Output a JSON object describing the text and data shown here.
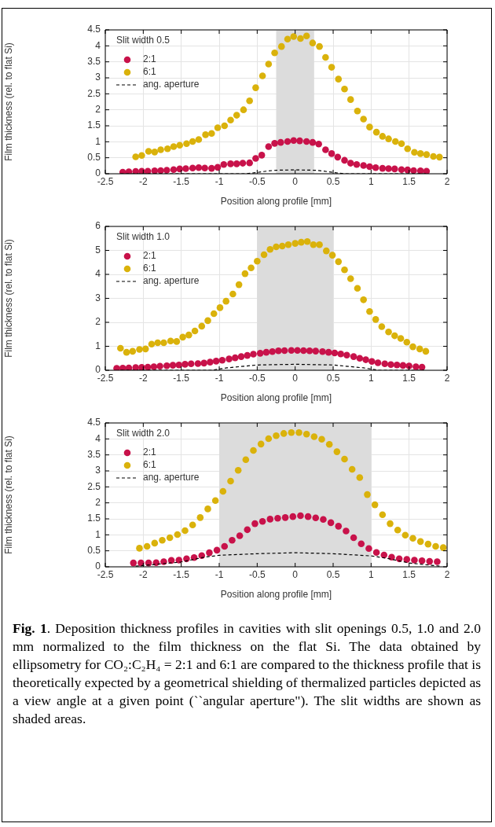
{
  "chart_data": [
    {
      "type": "scatter",
      "legend_title": "Slit width 0.5",
      "xlabel": "Position along profile [mm]",
      "ylabel": "Film thickness (rel. to flat Si)",
      "xlim": [
        -2.5,
        2
      ],
      "xticks": [
        -2.5,
        -2,
        -1.5,
        -1,
        -0.5,
        0,
        0.5,
        1,
        1.5,
        2
      ],
      "ylim": [
        0,
        4.5
      ],
      "yticks": [
        0,
        0.5,
        1,
        1.5,
        2,
        2.5,
        3,
        3.5,
        4,
        4.5
      ],
      "grid": true,
      "legend": "top left",
      "marker": "circle",
      "bands": [
        {
          "axis": "x",
          "from": -0.25,
          "to": 0.25,
          "color": "#dcdcdc"
        }
      ],
      "series": [
        {
          "name": "2:1",
          "color": "#c8124a",
          "x": [
            -2.27,
            -2.19,
            -2.1,
            -2.02,
            -1.94,
            -1.85,
            -1.77,
            -1.69,
            -1.6,
            -1.52,
            -1.44,
            -1.35,
            -1.27,
            -1.19,
            -1.1,
            -1.02,
            -0.94,
            -0.85,
            -0.77,
            -0.69,
            -0.6,
            -0.52,
            -0.44,
            -0.35,
            -0.27,
            -0.19,
            -0.1,
            -0.02,
            0.06,
            0.15,
            0.23,
            0.31,
            0.4,
            0.48,
            0.56,
            0.65,
            0.73,
            0.81,
            0.9,
            0.98,
            1.06,
            1.15,
            1.23,
            1.31,
            1.4,
            1.48,
            1.56,
            1.65,
            1.73
          ],
          "values": [
            0.05,
            0.06,
            0.07,
            0.08,
            0.08,
            0.09,
            0.1,
            0.11,
            0.13,
            0.15,
            0.16,
            0.18,
            0.19,
            0.18,
            0.17,
            0.2,
            0.29,
            0.31,
            0.31,
            0.33,
            0.34,
            0.48,
            0.58,
            0.85,
            0.95,
            0.98,
            1.01,
            1.04,
            1.03,
            1.01,
            0.98,
            0.93,
            0.75,
            0.63,
            0.52,
            0.42,
            0.33,
            0.29,
            0.26,
            0.22,
            0.19,
            0.17,
            0.16,
            0.15,
            0.13,
            0.12,
            0.1,
            0.09,
            0.08
          ]
        },
        {
          "name": "6:1",
          "color": "#dab20b",
          "x": [
            -2.1,
            -2.02,
            -1.93,
            -1.85,
            -1.77,
            -1.68,
            -1.6,
            -1.52,
            -1.43,
            -1.35,
            -1.27,
            -1.18,
            -1.1,
            -1.02,
            -0.93,
            -0.85,
            -0.77,
            -0.68,
            -0.6,
            -0.52,
            -0.43,
            -0.35,
            -0.27,
            -0.18,
            -0.1,
            -0.02,
            0.07,
            0.15,
            0.23,
            0.32,
            0.4,
            0.48,
            0.57,
            0.65,
            0.73,
            0.82,
            0.9,
            0.98,
            1.07,
            1.15,
            1.23,
            1.32,
            1.4,
            1.48,
            1.57,
            1.65,
            1.73,
            1.82,
            1.9
          ],
          "values": [
            0.53,
            0.57,
            0.7,
            0.68,
            0.75,
            0.78,
            0.85,
            0.89,
            0.94,
            1.01,
            1.07,
            1.22,
            1.26,
            1.44,
            1.5,
            1.68,
            1.83,
            2.0,
            2.28,
            2.69,
            3.06,
            3.43,
            3.78,
            3.98,
            4.21,
            4.29,
            4.23,
            4.31,
            4.09,
            3.98,
            3.64,
            3.33,
            2.96,
            2.65,
            2.32,
            1.96,
            1.71,
            1.46,
            1.3,
            1.17,
            1.09,
            1.01,
            0.94,
            0.78,
            0.67,
            0.63,
            0.6,
            0.54,
            0.52
          ]
        },
        {
          "name": "ang. aperture",
          "type": "line",
          "line_style": "dashed",
          "marker": "none",
          "color": "#000000",
          "x": [
            -2.3,
            -0.65,
            -0.5,
            -0.35,
            -0.25,
            0,
            0.25,
            0.35,
            0.5,
            0.65,
            1.75
          ],
          "values": [
            0,
            0,
            0.04,
            0.09,
            0.11,
            0.12,
            0.11,
            0.09,
            0.04,
            0,
            0
          ]
        }
      ]
    },
    {
      "type": "scatter",
      "legend_title": "Slit width 1.0",
      "xlabel": "Position along profile [mm]",
      "ylabel": "Film thickness (rel. to flat Si)",
      "xlim": [
        -2.5,
        2
      ],
      "xticks": [
        -2.5,
        -2,
        -1.5,
        -1,
        -0.5,
        0,
        0.5,
        1,
        1.5,
        2
      ],
      "ylim": [
        0,
        6
      ],
      "yticks": [
        0,
        1,
        2,
        3,
        4,
        5,
        6
      ],
      "grid": true,
      "legend": "top left",
      "marker": "circle",
      "bands": [
        {
          "axis": "x",
          "from": -0.5,
          "to": 0.5,
          "color": "#dcdcdc"
        }
      ],
      "series": [
        {
          "name": "2:1",
          "color": "#c8124a",
          "x": [
            -2.35,
            -2.27,
            -2.19,
            -2.1,
            -2.02,
            -1.94,
            -1.86,
            -1.78,
            -1.69,
            -1.61,
            -1.53,
            -1.45,
            -1.37,
            -1.28,
            -1.2,
            -1.12,
            -1.04,
            -0.96,
            -0.87,
            -0.79,
            -0.71,
            -0.63,
            -0.55,
            -0.46,
            -0.38,
            -0.3,
            -0.22,
            -0.14,
            -0.05,
            0.03,
            0.11,
            0.19,
            0.27,
            0.36,
            0.44,
            0.52,
            0.6,
            0.68,
            0.77,
            0.85,
            0.93,
            1.01,
            1.09,
            1.18,
            1.26,
            1.34,
            1.42,
            1.5,
            1.59,
            1.67
          ],
          "values": [
            0.08,
            0.09,
            0.1,
            0.11,
            0.12,
            0.13,
            0.15,
            0.17,
            0.19,
            0.21,
            0.22,
            0.25,
            0.27,
            0.28,
            0.3,
            0.34,
            0.38,
            0.42,
            0.47,
            0.52,
            0.57,
            0.62,
            0.67,
            0.71,
            0.75,
            0.78,
            0.81,
            0.82,
            0.83,
            0.83,
            0.82,
            0.81,
            0.8,
            0.78,
            0.75,
            0.72,
            0.68,
            0.63,
            0.57,
            0.5,
            0.44,
            0.37,
            0.31,
            0.27,
            0.24,
            0.22,
            0.2,
            0.18,
            0.15,
            0.13
          ]
        },
        {
          "name": "6:1",
          "color": "#dab20b",
          "x": [
            -2.3,
            -2.22,
            -2.14,
            -2.05,
            -1.97,
            -1.89,
            -1.81,
            -1.73,
            -1.64,
            -1.56,
            -1.48,
            -1.4,
            -1.32,
            -1.23,
            -1.15,
            -1.07,
            -0.99,
            -0.91,
            -0.82,
            -0.74,
            -0.66,
            -0.58,
            -0.5,
            -0.41,
            -0.33,
            -0.25,
            -0.17,
            -0.09,
            0.0,
            0.08,
            0.16,
            0.24,
            0.32,
            0.41,
            0.49,
            0.57,
            0.65,
            0.73,
            0.82,
            0.9,
            0.98,
            1.06,
            1.14,
            1.23,
            1.31,
            1.39,
            1.47,
            1.55,
            1.64,
            1.72
          ],
          "values": [
            0.92,
            0.75,
            0.79,
            0.87,
            0.89,
            1.09,
            1.15,
            1.15,
            1.22,
            1.2,
            1.38,
            1.47,
            1.64,
            1.84,
            2.07,
            2.36,
            2.61,
            2.88,
            3.18,
            3.57,
            4.03,
            4.27,
            4.55,
            4.82,
            5.04,
            5.15,
            5.18,
            5.24,
            5.29,
            5.34,
            5.37,
            5.24,
            5.24,
            4.98,
            4.8,
            4.53,
            4.19,
            3.82,
            3.42,
            2.94,
            2.45,
            2.12,
            1.82,
            1.6,
            1.44,
            1.33,
            1.17,
            0.98,
            0.89,
            0.79
          ]
        },
        {
          "name": "ang. aperture",
          "type": "line",
          "line_style": "dashed",
          "marker": "none",
          "color": "#000000",
          "x": [
            -2.3,
            -1.1,
            -0.9,
            -0.5,
            0,
            0.5,
            0.9,
            1.1,
            1.7
          ],
          "values": [
            0,
            0,
            0.1,
            0.22,
            0.25,
            0.22,
            0.1,
            0,
            0
          ]
        }
      ]
    },
    {
      "type": "scatter",
      "legend_title": "Slit width 2.0",
      "xlabel": "Position along profile [mm]",
      "ylabel": "Film thickness (rel. to flat Si)",
      "xlim": [
        -2.5,
        2
      ],
      "xticks": [
        -2.5,
        -2,
        -1.5,
        -1,
        -0.5,
        0,
        0.5,
        1,
        1.5,
        2
      ],
      "ylim": [
        0,
        4.5
      ],
      "yticks": [
        0,
        0.5,
        1,
        1.5,
        2,
        2.5,
        3,
        3.5,
        4,
        4.5
      ],
      "grid": true,
      "legend": "top left",
      "marker": "circle",
      "bands": [
        {
          "axis": "x",
          "from": -1,
          "to": 1,
          "color": "#dcdcdc"
        }
      ],
      "series": [
        {
          "name": "2:1",
          "color": "#c8124a",
          "x": [
            -2.13,
            -2.03,
            -1.93,
            -1.83,
            -1.73,
            -1.63,
            -1.53,
            -1.43,
            -1.33,
            -1.23,
            -1.13,
            -1.03,
            -0.93,
            -0.83,
            -0.73,
            -0.63,
            -0.53,
            -0.43,
            -0.33,
            -0.23,
            -0.13,
            -0.03,
            0.07,
            0.17,
            0.27,
            0.37,
            0.47,
            0.57,
            0.67,
            0.77,
            0.87,
            0.97,
            1.07,
            1.17,
            1.27,
            1.37,
            1.47,
            1.57,
            1.67,
            1.77,
            1.87
          ],
          "values": [
            0.12,
            0.12,
            0.12,
            0.13,
            0.16,
            0.2,
            0.21,
            0.25,
            0.29,
            0.35,
            0.44,
            0.52,
            0.64,
            0.83,
            0.97,
            1.16,
            1.35,
            1.42,
            1.49,
            1.52,
            1.54,
            1.57,
            1.6,
            1.57,
            1.53,
            1.48,
            1.38,
            1.27,
            1.12,
            0.91,
            0.72,
            0.57,
            0.45,
            0.37,
            0.3,
            0.25,
            0.23,
            0.21,
            0.19,
            0.17,
            0.16
          ]
        },
        {
          "name": "6:1",
          "color": "#dab20b",
          "x": [
            -2.05,
            -1.95,
            -1.85,
            -1.75,
            -1.65,
            -1.55,
            -1.45,
            -1.35,
            -1.25,
            -1.15,
            -1.05,
            -0.95,
            -0.85,
            -0.75,
            -0.65,
            -0.55,
            -0.45,
            -0.35,
            -0.25,
            -0.15,
            -0.05,
            0.05,
            0.15,
            0.25,
            0.35,
            0.45,
            0.55,
            0.65,
            0.75,
            0.85,
            0.95,
            1.05,
            1.15,
            1.25,
            1.35,
            1.45,
            1.55,
            1.65,
            1.75,
            1.85,
            1.95
          ],
          "values": [
            0.58,
            0.64,
            0.74,
            0.83,
            0.91,
            1.01,
            1.13,
            1.31,
            1.54,
            1.81,
            2.07,
            2.36,
            2.68,
            3.02,
            3.35,
            3.64,
            3.84,
            4.01,
            4.1,
            4.17,
            4.2,
            4.2,
            4.15,
            4.07,
            3.99,
            3.83,
            3.6,
            3.37,
            3.05,
            2.79,
            2.26,
            1.94,
            1.63,
            1.35,
            1.15,
            0.99,
            0.89,
            0.79,
            0.71,
            0.64,
            0.6
          ]
        },
        {
          "name": "ang. aperture",
          "type": "line",
          "line_style": "dashed",
          "marker": "none",
          "color": "#000000",
          "x": [
            -2.1,
            -1.5,
            -1.2,
            -1,
            -0.5,
            0,
            0.5,
            1,
            1.2,
            1.5,
            1.9
          ],
          "values": [
            0.02,
            0.15,
            0.3,
            0.36,
            0.41,
            0.44,
            0.41,
            0.34,
            0.27,
            0.12,
            0.02
          ]
        }
      ]
    },
    {
      "type": "other",
      "title": "Fig. 1",
      "annotations": [
        ". Deposition thickness profiles in cavities with slit openings 0.5, 1.0 and 2.0 mm normalized to the film thickness on the flat Si. The data obtained by ellipsometry for CO₂:C₂H₄ = 2:1 and 6:1 are compared to the thickness profile that is theoretically expected by a geometrical shielding of thermalized particles depicted as a view angle at a given point (``angular aperture\"). The slit widths are shown as shaded areas."
      ]
    }
  ]
}
